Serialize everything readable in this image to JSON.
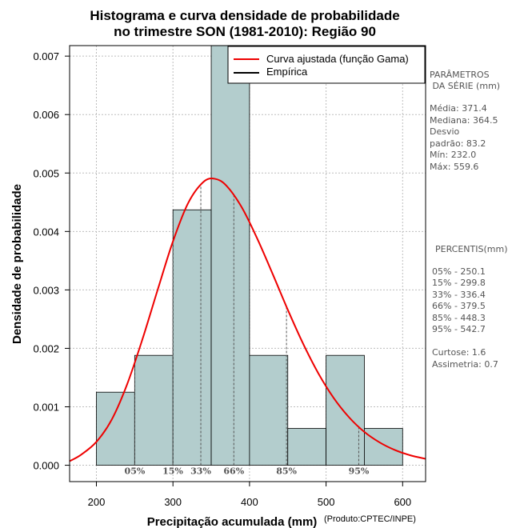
{
  "chart_data": {
    "type": "bar",
    "title": [
      "Histograma e curva densidade de probabilidade",
      "no trimestre SON (1981-2010): Região 90"
    ],
    "xlabel": "Precipitação acumulada (mm)",
    "ylabel": "Densidade de probabilidade",
    "xlim": [
      165,
      630
    ],
    "ylim": [
      -0.00028,
      0.00718
    ],
    "xticks": [
      200,
      300,
      400,
      500,
      600
    ],
    "yticks": [
      0.0,
      0.001,
      0.002,
      0.003,
      0.004,
      0.005,
      0.006,
      0.007
    ],
    "ytick_labels": [
      "0.000",
      "0.001",
      "0.002",
      "0.003",
      "0.004",
      "0.005",
      "0.006",
      "0.007"
    ],
    "grid": true,
    "bar_color": "#b3cdcd",
    "bins": [
      {
        "x0": 200,
        "x1": 250,
        "density": 0.00125
      },
      {
        "x0": 250,
        "x1": 300,
        "density": 0.00188
      },
      {
        "x0": 300,
        "x1": 350,
        "density": 0.00437
      },
      {
        "x0": 350,
        "x1": 400,
        "density": 0.0075
      },
      {
        "x0": 400,
        "x1": 450,
        "density": 0.00188
      },
      {
        "x0": 450,
        "x1": 500,
        "density": 0.00063
      },
      {
        "x0": 500,
        "x1": 550,
        "density": 0.00188
      },
      {
        "x0": 550,
        "x1": 600,
        "density": 0.00063
      }
    ],
    "curve": {
      "name": "Curva ajustada (função Gama)",
      "color": "#ee0000",
      "x": [
        165,
        180,
        200,
        220,
        240,
        260,
        280,
        300,
        320,
        340,
        355,
        370,
        390,
        410,
        430,
        450,
        470,
        490,
        510,
        530,
        550,
        570,
        590,
        610,
        630
      ],
      "y": [
        7e-05,
        0.00018,
        0.0004,
        0.00078,
        0.00138,
        0.00215,
        0.003,
        0.00383,
        0.00449,
        0.00485,
        0.0049,
        0.00478,
        0.00441,
        0.00388,
        0.00328,
        0.00266,
        0.00208,
        0.00157,
        0.00115,
        0.00082,
        0.00057,
        0.00039,
        0.00026,
        0.00017,
        0.00011
      ]
    },
    "legend": {
      "position": "top-right",
      "entries": [
        {
          "label": "Curva ajustada (função Gama)",
          "color": "#ee0000"
        },
        {
          "label": "Empírica",
          "color": "#000000"
        }
      ]
    },
    "percentiles": [
      {
        "label": "05%",
        "value": 250.1
      },
      {
        "label": "15%",
        "value": 299.8
      },
      {
        "label": "33%",
        "value": 336.4
      },
      {
        "label": "66%",
        "value": 379.5
      },
      {
        "label": "85%",
        "value": 448.3
      },
      {
        "label": "95%",
        "value": 542.7
      }
    ]
  },
  "side_panel": {
    "params_title": [
      "PARÂMETROS",
      " DA SÉRIE (mm)"
    ],
    "params_lines": [
      "Média:  371.4",
      "Mediana:  364.5",
      "Desvio",
      "padrão:  83.2",
      "Mín:  232.0",
      "Máx:  559.6"
    ],
    "pct_title": "PERCENTIS(mm)",
    "pct_lines": [
      "05% -  250.1",
      "15% -  299.8",
      "33% -  336.4",
      "66% -  379.5",
      "85% -  448.3",
      "95% -  542.7"
    ],
    "stats_lines": [
      "Curtose:  1.6",
      "Assimetria:  0.7"
    ]
  },
  "credit": "(Produto:CPTEC/INPE)"
}
